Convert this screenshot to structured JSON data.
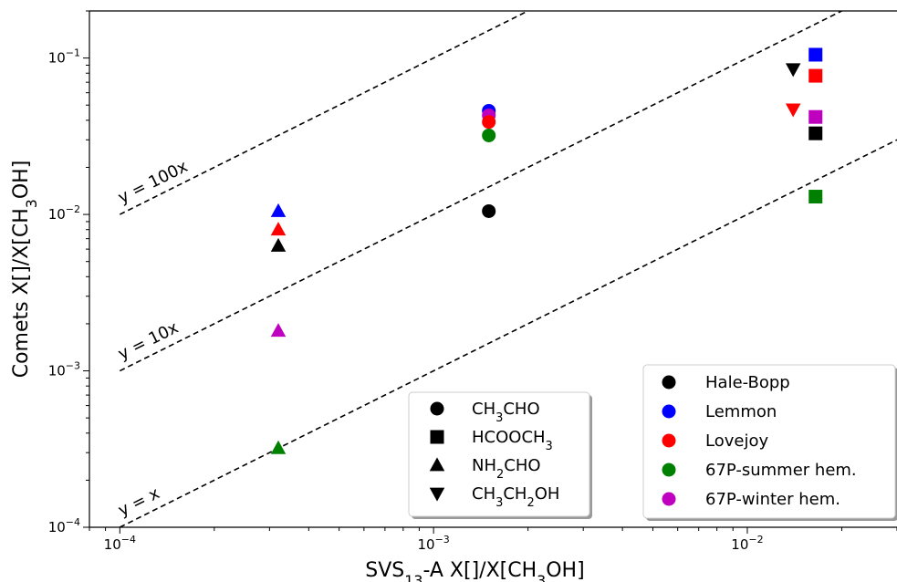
{
  "chart_data": {
    "type": "scatter",
    "xlabel": "SVS13-A X[]/X[CH3OH]",
    "ylabel": "Comets X[]/X[CH3OH]",
    "xscale": "log",
    "yscale": "log",
    "xlim": [
      8e-05,
      0.03
    ],
    "ylim": [
      0.0001,
      0.2
    ],
    "x_ticks": [
      {
        "value": 0.0001,
        "base": "10",
        "exp": "−4"
      },
      {
        "value": 0.001,
        "base": "10",
        "exp": "−3"
      },
      {
        "value": 0.01,
        "base": "10",
        "exp": "−2"
      }
    ],
    "y_ticks": [
      {
        "value": 0.0001,
        "base": "10",
        "exp": "−4"
      },
      {
        "value": 0.001,
        "base": "10",
        "exp": "−3"
      },
      {
        "value": 0.01,
        "base": "10",
        "exp": "−2"
      },
      {
        "value": 0.1,
        "base": "10",
        "exp": "−1"
      }
    ],
    "grid": false,
    "reference_lines": [
      {
        "label": "y = 100x",
        "factor": 100,
        "x_range": [
          0.0001,
          0.03
        ]
      },
      {
        "label": "y = 10x",
        "factor": 10,
        "x_range": [
          0.0001,
          0.03
        ]
      },
      {
        "label": "y = x",
        "factor": 1,
        "x_range": [
          0.0001,
          0.03
        ]
      }
    ],
    "colors": {
      "Hale-Bopp": "#000000",
      "Lemmon": "#0000ff",
      "Lovejoy": "#ff0000",
      "67P-summer hem.": "#008000",
      "67P-winter hem.": "#bf00bf"
    },
    "points": [
      {
        "molecule": "NH2CHO",
        "comet": "Lemmon",
        "x": 0.00032,
        "y": 0.0105
      },
      {
        "molecule": "NH2CHO",
        "comet": "Lovejoy",
        "x": 0.00032,
        "y": 0.008
      },
      {
        "molecule": "NH2CHO",
        "comet": "Hale-Bopp",
        "x": 0.00032,
        "y": 0.0063
      },
      {
        "molecule": "NH2CHO",
        "comet": "67P-winter hem.",
        "x": 0.00032,
        "y": 0.0018
      },
      {
        "molecule": "NH2CHO",
        "comet": "67P-summer hem.",
        "x": 0.00032,
        "y": 0.00032
      },
      {
        "molecule": "CH3CHO",
        "comet": "Lemmon",
        "x": 0.0015,
        "y": 0.046
      },
      {
        "molecule": "CH3CHO",
        "comet": "67P-winter hem.",
        "x": 0.0015,
        "y": 0.043
      },
      {
        "molecule": "CH3CHO",
        "comet": "Lovejoy",
        "x": 0.0015,
        "y": 0.039
      },
      {
        "molecule": "CH3CHO",
        "comet": "67P-summer hem.",
        "x": 0.0015,
        "y": 0.032
      },
      {
        "molecule": "CH3CHO",
        "comet": "Hale-Bopp",
        "x": 0.0015,
        "y": 0.0105
      },
      {
        "molecule": "CH3CH2OH",
        "comet": "Hale-Bopp",
        "x": 0.014,
        "y": 0.085
      },
      {
        "molecule": "CH3CH2OH",
        "comet": "Lovejoy",
        "x": 0.014,
        "y": 0.047
      },
      {
        "molecule": "HCOOCH3",
        "comet": "Lemmon",
        "x": 0.0165,
        "y": 0.105
      },
      {
        "molecule": "HCOOCH3",
        "comet": "Lovejoy",
        "x": 0.0165,
        "y": 0.077
      },
      {
        "molecule": "HCOOCH3",
        "comet": "67P-winter hem.",
        "x": 0.0165,
        "y": 0.042
      },
      {
        "molecule": "HCOOCH3",
        "comet": "Hale-Bopp",
        "x": 0.0165,
        "y": 0.033
      },
      {
        "molecule": "HCOOCH3",
        "comet": "67P-summer hem.",
        "x": 0.0165,
        "y": 0.013
      }
    ],
    "legend_molecules": [
      {
        "label": "CH3CHO",
        "marker": "circle"
      },
      {
        "label": "HCOOCH3",
        "marker": "square"
      },
      {
        "label": "NH2CHO",
        "marker": "triangle-up"
      },
      {
        "label": "CH3CH2OH",
        "marker": "triangle-down"
      }
    ],
    "legend_comets": [
      "Hale-Bopp",
      "Lemmon",
      "Lovejoy",
      "67P-summer hem.",
      "67P-winter hem."
    ],
    "legend_placement": [
      "bottom-center",
      "bottom-right"
    ]
  }
}
